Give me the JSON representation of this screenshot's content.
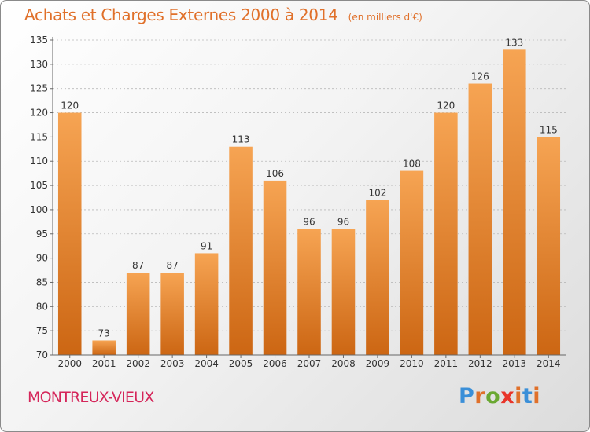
{
  "title": "Achats et Charges Externes 2000 à 2014",
  "subtitle": "(en milliers d'€)",
  "town": "MONTREUX-VIEUX",
  "brand": {
    "text": "Proxiti",
    "letter_colors": [
      "#3a8fd8",
      "#e0702a",
      "#6aa832",
      "#e8352a",
      "#e0702a",
      "#3a8fd8",
      "#e0702a"
    ]
  },
  "colors": {
    "bar_light": "#f6a453",
    "bar_dark": "#cc6613",
    "title": "#e0702a",
    "town": "#d5265a"
  },
  "chart_data": {
    "type": "bar",
    "categories": [
      "2000",
      "2001",
      "2002",
      "2003",
      "2004",
      "2005",
      "2006",
      "2007",
      "2008",
      "2009",
      "2010",
      "2011",
      "2012",
      "2013",
      "2014"
    ],
    "values": [
      120,
      73,
      87,
      87,
      91,
      113,
      106,
      96,
      96,
      102,
      108,
      120,
      126,
      133,
      115
    ],
    "ylim": [
      70,
      135
    ],
    "yticks": [
      70,
      75,
      80,
      85,
      90,
      95,
      100,
      105,
      110,
      115,
      120,
      125,
      130,
      135
    ],
    "grid": true,
    "xlabel": "",
    "ylabel": ""
  }
}
